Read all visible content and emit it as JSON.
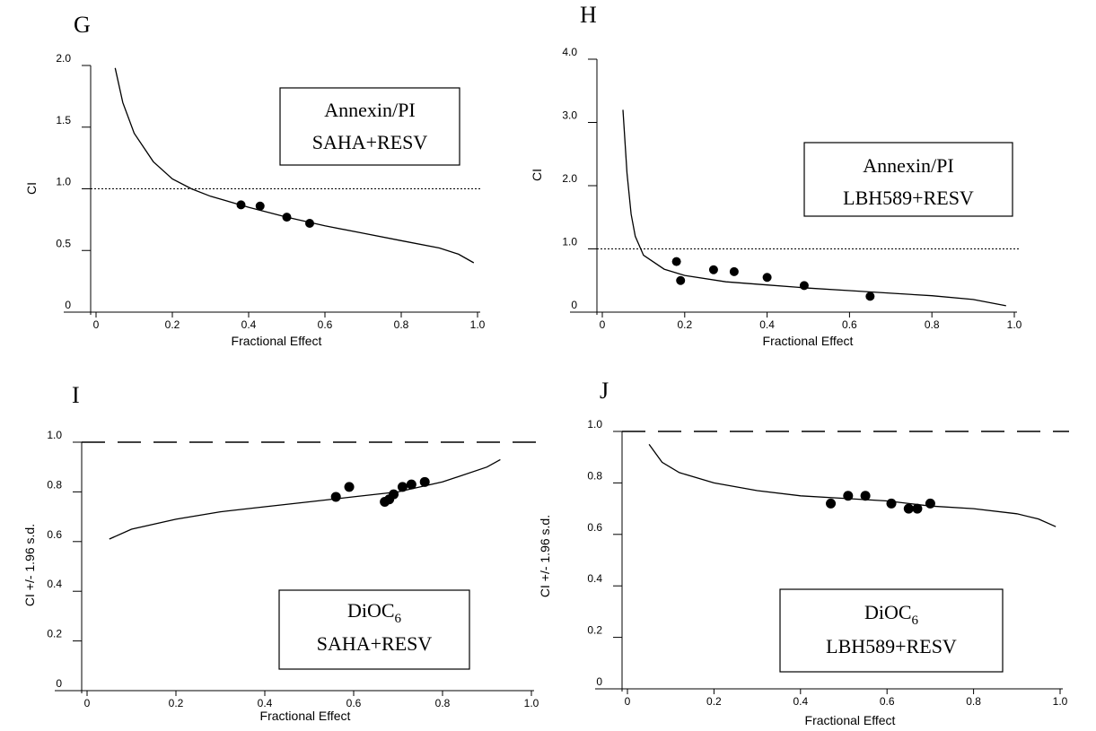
{
  "chart_data": [
    {
      "type": "scatter",
      "panel": "G",
      "xlabel": "Fractional Effect",
      "ylabel": "CI",
      "xlim": [
        0,
        1.0
      ],
      "ylim": [
        0,
        2.0
      ],
      "xticks": [
        "0",
        "0.2",
        "0.4",
        "0.6",
        "0.8",
        "1.0"
      ],
      "yticks": [
        "0",
        "0.5",
        "1.0",
        "1.5",
        "2.0"
      ],
      "legend": [
        "Annexin/PI",
        "SAHA+RESV"
      ],
      "reference_line": {
        "y": 1.0,
        "style": "dotted"
      },
      "points": [
        {
          "x": 0.38,
          "y": 0.87
        },
        {
          "x": 0.43,
          "y": 0.86
        },
        {
          "x": 0.5,
          "y": 0.77
        },
        {
          "x": 0.56,
          "y": 0.72
        }
      ],
      "curve": [
        {
          "x": 0.05,
          "y": 1.98
        },
        {
          "x": 0.07,
          "y": 1.7
        },
        {
          "x": 0.1,
          "y": 1.45
        },
        {
          "x": 0.15,
          "y": 1.22
        },
        {
          "x": 0.2,
          "y": 1.08
        },
        {
          "x": 0.25,
          "y": 1.0
        },
        {
          "x": 0.3,
          "y": 0.94
        },
        {
          "x": 0.4,
          "y": 0.85
        },
        {
          "x": 0.5,
          "y": 0.77
        },
        {
          "x": 0.6,
          "y": 0.7
        },
        {
          "x": 0.7,
          "y": 0.64
        },
        {
          "x": 0.8,
          "y": 0.58
        },
        {
          "x": 0.9,
          "y": 0.52
        },
        {
          "x": 0.95,
          "y": 0.47
        },
        {
          "x": 0.99,
          "y": 0.4
        }
      ]
    },
    {
      "type": "scatter",
      "panel": "H",
      "xlabel": "Fractional Effect",
      "ylabel": "CI",
      "xlim": [
        0,
        1.0
      ],
      "ylim": [
        0,
        4.0
      ],
      "xticks": [
        "0",
        "0.2",
        "0.4",
        "0.6",
        "0.8",
        "1.0"
      ],
      "yticks": [
        "0",
        "1.0",
        "2.0",
        "3.0",
        "4.0"
      ],
      "legend": [
        "Annexin/PI",
        "LBH589+RESV"
      ],
      "reference_line": {
        "y": 1.0,
        "style": "dotted"
      },
      "points": [
        {
          "x": 0.18,
          "y": 0.8
        },
        {
          "x": 0.19,
          "y": 0.5
        },
        {
          "x": 0.27,
          "y": 0.67
        },
        {
          "x": 0.32,
          "y": 0.64
        },
        {
          "x": 0.4,
          "y": 0.55
        },
        {
          "x": 0.49,
          "y": 0.42
        },
        {
          "x": 0.65,
          "y": 0.25
        }
      ],
      "curve": [
        {
          "x": 0.05,
          "y": 3.2
        },
        {
          "x": 0.06,
          "y": 2.2
        },
        {
          "x": 0.07,
          "y": 1.55
        },
        {
          "x": 0.08,
          "y": 1.2
        },
        {
          "x": 0.1,
          "y": 0.9
        },
        {
          "x": 0.15,
          "y": 0.68
        },
        {
          "x": 0.2,
          "y": 0.58
        },
        {
          "x": 0.3,
          "y": 0.48
        },
        {
          "x": 0.4,
          "y": 0.43
        },
        {
          "x": 0.5,
          "y": 0.38
        },
        {
          "x": 0.6,
          "y": 0.34
        },
        {
          "x": 0.7,
          "y": 0.3
        },
        {
          "x": 0.8,
          "y": 0.26
        },
        {
          "x": 0.9,
          "y": 0.2
        },
        {
          "x": 0.98,
          "y": 0.1
        }
      ]
    },
    {
      "type": "scatter",
      "panel": "I",
      "xlabel": "Fractional Effect",
      "ylabel": "CI +/- 1.96 s.d.",
      "xlim": [
        0,
        1.0
      ],
      "ylim": [
        0,
        1.0
      ],
      "xticks": [
        "0",
        "0.2",
        "0.4",
        "0.6",
        "0.8",
        "1.0"
      ],
      "yticks": [
        "0",
        "0.2",
        "0.4",
        "0.6",
        "0.8",
        "1.0"
      ],
      "legend": [
        "DiOC6",
        "SAHA+RESV"
      ],
      "reference_line": {
        "y": 1.0,
        "style": "dashed"
      },
      "points": [
        {
          "x": 0.56,
          "y": 0.78
        },
        {
          "x": 0.59,
          "y": 0.82
        },
        {
          "x": 0.67,
          "y": 0.76
        },
        {
          "x": 0.68,
          "y": 0.77
        },
        {
          "x": 0.69,
          "y": 0.79
        },
        {
          "x": 0.71,
          "y": 0.82
        },
        {
          "x": 0.73,
          "y": 0.83
        },
        {
          "x": 0.76,
          "y": 0.84
        }
      ],
      "curve": [
        {
          "x": 0.05,
          "y": 0.61
        },
        {
          "x": 0.1,
          "y": 0.65
        },
        {
          "x": 0.2,
          "y": 0.69
        },
        {
          "x": 0.3,
          "y": 0.72
        },
        {
          "x": 0.4,
          "y": 0.74
        },
        {
          "x": 0.5,
          "y": 0.76
        },
        {
          "x": 0.6,
          "y": 0.78
        },
        {
          "x": 0.7,
          "y": 0.8
        },
        {
          "x": 0.8,
          "y": 0.84
        },
        {
          "x": 0.9,
          "y": 0.9
        },
        {
          "x": 0.93,
          "y": 0.93
        }
      ]
    },
    {
      "type": "scatter",
      "panel": "J",
      "xlabel": "Fractional Effect",
      "ylabel": "CI +/- 1.96 s.d.",
      "xlim": [
        0,
        1.0
      ],
      "ylim": [
        0,
        1.0
      ],
      "xticks": [
        "0",
        "0.2",
        "0.4",
        "0.6",
        "0.8",
        "1.0"
      ],
      "yticks": [
        "0",
        "0.2",
        "0.4",
        "0.6",
        "0.8",
        "1.0"
      ],
      "legend": [
        "DiOC6",
        "LBH589+RESV"
      ],
      "reference_line": {
        "y": 1.0,
        "style": "dashed"
      },
      "points": [
        {
          "x": 0.47,
          "y": 0.72
        },
        {
          "x": 0.51,
          "y": 0.75
        },
        {
          "x": 0.55,
          "y": 0.75
        },
        {
          "x": 0.61,
          "y": 0.72
        },
        {
          "x": 0.65,
          "y": 0.7
        },
        {
          "x": 0.67,
          "y": 0.7
        },
        {
          "x": 0.7,
          "y": 0.72
        }
      ],
      "curve": [
        {
          "x": 0.05,
          "y": 0.95
        },
        {
          "x": 0.08,
          "y": 0.88
        },
        {
          "x": 0.12,
          "y": 0.84
        },
        {
          "x": 0.2,
          "y": 0.8
        },
        {
          "x": 0.3,
          "y": 0.77
        },
        {
          "x": 0.4,
          "y": 0.75
        },
        {
          "x": 0.5,
          "y": 0.74
        },
        {
          "x": 0.6,
          "y": 0.73
        },
        {
          "x": 0.7,
          "y": 0.71
        },
        {
          "x": 0.8,
          "y": 0.7
        },
        {
          "x": 0.9,
          "y": 0.68
        },
        {
          "x": 0.95,
          "y": 0.66
        },
        {
          "x": 0.99,
          "y": 0.63
        }
      ]
    }
  ]
}
